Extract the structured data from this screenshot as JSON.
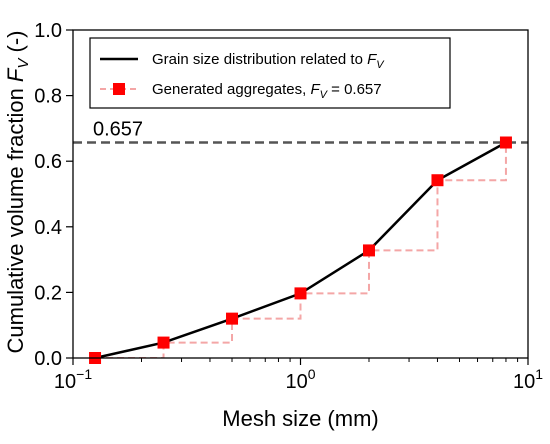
{
  "chart_data": {
    "type": "line",
    "x_scale": "log",
    "xlim": [
      0.1,
      10
    ],
    "ylim": [
      0,
      1.0
    ],
    "xlabel": "Mesh size (mm)",
    "ylabel": "Cumulative volume fraction",
    "ylabel_symbol": "F",
    "ylabel_subscript": "V",
    "ylabel_suffix": "(-)",
    "x_ticks": [
      {
        "value": 0.1,
        "base": "10",
        "exp": "−1"
      },
      {
        "value": 1,
        "base": "10",
        "exp": "0"
      },
      {
        "value": 10,
        "base": "10",
        "exp": "1"
      }
    ],
    "y_ticks": [
      {
        "value": 0.0,
        "label": "0.0"
      },
      {
        "value": 0.2,
        "label": "0.2"
      },
      {
        "value": 0.4,
        "label": "0.4"
      },
      {
        "value": 0.6,
        "label": "0.6"
      },
      {
        "value": 0.8,
        "label": "0.8"
      },
      {
        "value": 1.0,
        "label": "1.0"
      }
    ],
    "series": [
      {
        "name_prefix": "Grain size distribution related to ",
        "name_symbol": "F",
        "name_subscript": "V",
        "name_suffix": "",
        "style": "solid",
        "color": "#000000",
        "x": [
          0.125,
          0.25,
          0.5,
          1,
          2,
          4,
          8
        ],
        "y": [
          0.0,
          0.047,
          0.12,
          0.197,
          0.328,
          0.542,
          0.657
        ]
      },
      {
        "name_prefix": "Generated aggregates, ",
        "name_symbol": "F",
        "name_subscript": "V",
        "name_suffix": " = 0.657",
        "style": "dashed-step",
        "color": "#f4a6a6",
        "marker_color": "#ff0000",
        "x": [
          0.125,
          0.25,
          0.5,
          1,
          2,
          4,
          8
        ],
        "y": [
          0.0,
          0.047,
          0.12,
          0.197,
          0.328,
          0.542,
          0.657
        ]
      }
    ],
    "reference_line": {
      "y": 0.657,
      "label": "0.657",
      "color": "#555555",
      "style": "dashed"
    },
    "legend_position": "top-left",
    "grid": false
  }
}
